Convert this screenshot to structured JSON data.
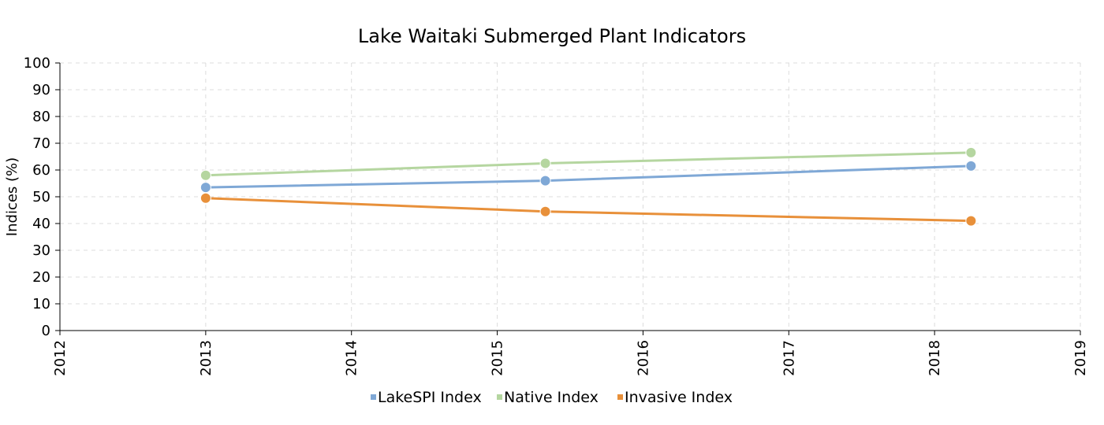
{
  "chart_data": {
    "type": "line",
    "title": "Lake Waitaki Submerged Plant Indicators",
    "xlabel": "",
    "ylabel": "Indices (%)",
    "xlim": [
      2012,
      2019
    ],
    "ylim": [
      0,
      100
    ],
    "x_ticks": [
      "2012",
      "2013",
      "2014",
      "2015",
      "2016",
      "2017",
      "2018",
      "2019"
    ],
    "y_ticks": [
      "0",
      "10",
      "20",
      "30",
      "40",
      "50",
      "60",
      "70",
      "80",
      "90",
      "100"
    ],
    "grid": true,
    "legend_position": "bottom-center",
    "series": [
      {
        "name": "LakeSPI Index",
        "color": "#7fa8d6",
        "points": [
          {
            "x": 2013.0,
            "y": 53.5
          },
          {
            "x": 2015.33,
            "y": 56.0
          },
          {
            "x": 2018.25,
            "y": 61.5
          }
        ]
      },
      {
        "name": "Native Index",
        "color": "#b5d6a0",
        "points": [
          {
            "x": 2013.0,
            "y": 58.0
          },
          {
            "x": 2015.33,
            "y": 62.5
          },
          {
            "x": 2018.25,
            "y": 66.5
          }
        ]
      },
      {
        "name": "Invasive Index",
        "color": "#e8903a",
        "points": [
          {
            "x": 2013.0,
            "y": 49.5
          },
          {
            "x": 2015.33,
            "y": 44.5
          },
          {
            "x": 2018.25,
            "y": 41.0
          }
        ]
      }
    ]
  }
}
